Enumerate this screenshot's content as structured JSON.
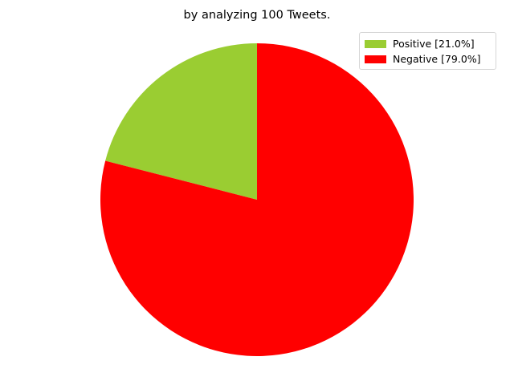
{
  "chart_data": {
    "type": "pie",
    "title": "by analyzing 100 Tweets.",
    "categories": [
      "Positive",
      "Negative"
    ],
    "values": [
      21.0,
      79.0
    ],
    "colors": [
      "#9acd32",
      "#ff0000"
    ],
    "start_angle_deg": 90,
    "direction": "counterclockwise",
    "legend": {
      "placement": "top-right",
      "entries": [
        "Positive [21.0%]",
        "Negative [79.0%]"
      ]
    }
  }
}
